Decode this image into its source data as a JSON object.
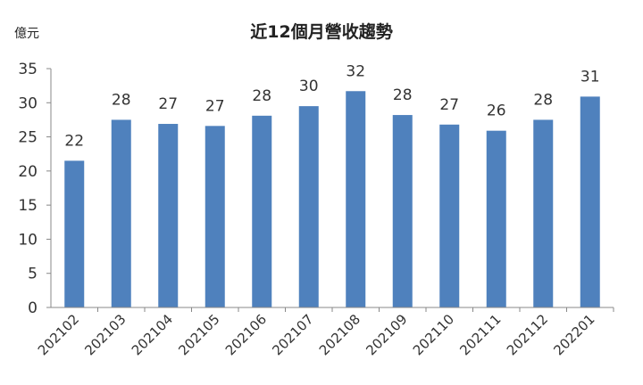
{
  "chart_data": {
    "type": "bar",
    "title": "近12個月營收趨勢",
    "ylabel": "億元",
    "xlabel": "",
    "ylim": [
      0,
      35
    ],
    "yticks": [
      0,
      5,
      10,
      15,
      20,
      25,
      30,
      35
    ],
    "grid": false,
    "categories": [
      "202102",
      "202103",
      "202104",
      "202105",
      "202106",
      "202107",
      "202108",
      "202109",
      "202110",
      "202111",
      "202112",
      "202201"
    ],
    "values": [
      21.5,
      27.5,
      26.9,
      26.6,
      28.1,
      29.5,
      31.7,
      28.2,
      26.8,
      25.9,
      27.5,
      30.9
    ],
    "data_labels": [
      "22",
      "28",
      "27",
      "27",
      "28",
      "30",
      "32",
      "28",
      "27",
      "26",
      "28",
      "31"
    ],
    "bar_color": "#4f81bd"
  }
}
